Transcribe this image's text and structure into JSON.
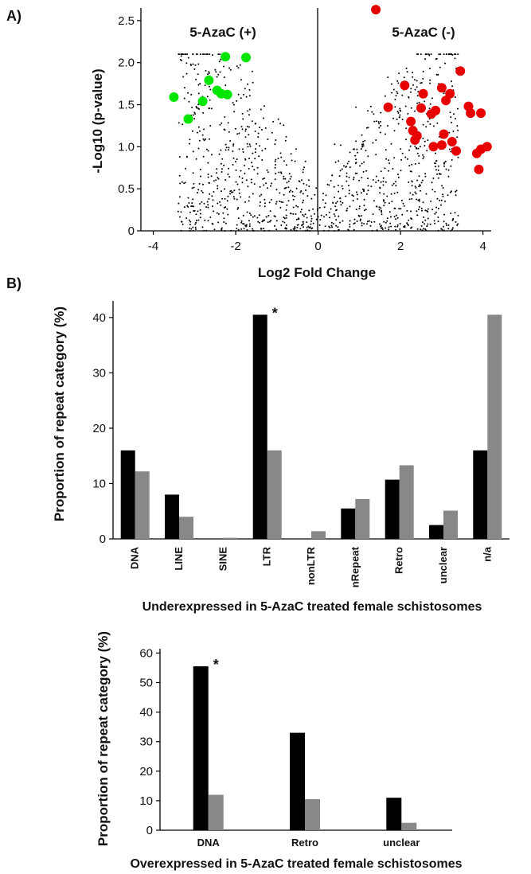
{
  "panels": {
    "a": "A)",
    "b": "B)"
  },
  "chart_data": [
    {
      "type": "scatter",
      "title": "",
      "xlabel": "Log2 Fold Change",
      "ylabel": "-Log10 (p-value)",
      "xlim": [
        -4.3,
        4.2
      ],
      "ylim": [
        0,
        2.65
      ],
      "xticks": [
        "-4",
        "-2",
        "0",
        "2",
        "4"
      ],
      "yticks": [
        "0",
        "0.5",
        "1.0",
        "1.5",
        "2.0",
        "2.5"
      ],
      "annotations": [
        "5-AzaC (+)",
        "5-AzaC (-)"
      ],
      "background_note": "dense black point cloud of non-significant repeats",
      "highlight_colors": {
        "up": "#00e600",
        "down": "#e60000"
      },
      "series": [
        {
          "color": "#00e600",
          "points": [
            [
              -3.5,
              1.59
            ],
            [
              -3.15,
              1.33
            ],
            [
              -2.8,
              1.54
            ],
            [
              -2.65,
              1.79
            ],
            [
              -2.45,
              1.67
            ],
            [
              -2.35,
              1.63
            ],
            [
              -2.25,
              2.07
            ],
            [
              -2.2,
              1.62
            ],
            [
              -1.75,
              2.06
            ]
          ]
        },
        {
          "color": "#e60000",
          "points": [
            [
              1.4,
              2.63
            ],
            [
              1.7,
              1.47
            ],
            [
              2.1,
              1.73
            ],
            [
              2.25,
              1.3
            ],
            [
              2.3,
              1.19
            ],
            [
              2.35,
              1.08
            ],
            [
              2.4,
              1.13
            ],
            [
              2.5,
              1.46
            ],
            [
              2.55,
              1.63
            ],
            [
              2.75,
              1.39
            ],
            [
              2.8,
              1.0
            ],
            [
              2.85,
              1.43
            ],
            [
              3.0,
              1.02
            ],
            [
              3.0,
              1.7
            ],
            [
              3.05,
              1.15
            ],
            [
              3.1,
              1.55
            ],
            [
              3.2,
              1.63
            ],
            [
              3.25,
              1.06
            ],
            [
              3.35,
              0.95
            ],
            [
              3.45,
              1.9
            ],
            [
              3.65,
              1.48
            ],
            [
              3.7,
              1.4
            ],
            [
              3.85,
              0.92
            ],
            [
              3.9,
              0.73
            ],
            [
              3.95,
              0.97
            ],
            [
              3.95,
              1.4
            ],
            [
              4.1,
              1.0
            ]
          ]
        }
      ]
    },
    {
      "type": "bar",
      "title": "Underexpressed in 5-AzaC treated female schistosomes",
      "ylabel": "Proportion of repeat category (%)",
      "ylim": [
        0,
        42
      ],
      "yticks": [
        "0",
        "10",
        "20",
        "30",
        "40"
      ],
      "categories": [
        "DNA",
        "LINE",
        "SINE",
        "LTR",
        "nonLTR",
        "nRepeat",
        "Retro",
        "unclear",
        "n/a"
      ],
      "series": [
        {
          "color": "#000000",
          "values": [
            16.0,
            8.0,
            0,
            40.5,
            0,
            5.5,
            10.7,
            2.5,
            16.0
          ]
        },
        {
          "color": "#888888",
          "values": [
            12.2,
            4.0,
            0.2,
            16.0,
            1.4,
            7.2,
            13.3,
            5.1,
            40.5
          ]
        }
      ],
      "annotations": [
        {
          "text": "*",
          "category": "LTR"
        }
      ]
    },
    {
      "type": "bar",
      "title": "Overexpressed in 5-AzaC treated female schistosomes",
      "ylabel": "Proportion of repeat category (%)",
      "ylim": [
        0,
        62
      ],
      "yticks": [
        "0",
        "10",
        "20",
        "30",
        "40",
        "50",
        "60"
      ],
      "categories": [
        "DNA",
        "Retro",
        "unclear"
      ],
      "series": [
        {
          "color": "#000000",
          "values": [
            55.5,
            33.0,
            11.0
          ]
        },
        {
          "color": "#888888",
          "values": [
            12.0,
            10.5,
            2.5
          ]
        }
      ],
      "annotations": [
        {
          "text": "*",
          "category": "DNA"
        }
      ]
    }
  ]
}
